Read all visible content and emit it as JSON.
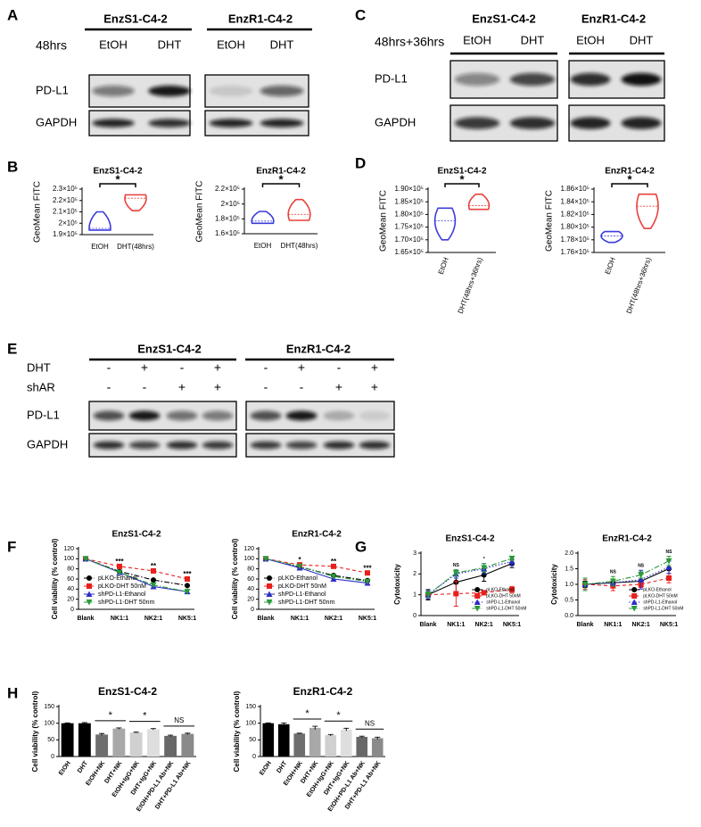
{
  "panel_labels": [
    "A",
    "B",
    "C",
    "D",
    "E",
    "F",
    "G",
    "H"
  ],
  "blots": [
    {
      "time_label": "48hrs",
      "groups": [
        {
          "title": "EnzS1-C4-2",
          "lanes": [
            "EtOH",
            "DHT"
          ]
        },
        {
          "title": "EnzR1-C4-2",
          "lanes": [
            "EtOH",
            "DHT"
          ]
        }
      ],
      "rows": [
        "PD-L1",
        "GAPDH"
      ]
    },
    {
      "time_label": "48hrs+36hrs",
      "groups": [
        {
          "title": "EnzS1-C4-2",
          "lanes": [
            "EtOH",
            "DHT"
          ]
        },
        {
          "title": "EnzR1-C4-2",
          "lanes": [
            "EtOH",
            "DHT"
          ]
        }
      ],
      "rows": [
        "PD-L1",
        "GAPDH"
      ]
    },
    {
      "groups": [
        {
          "title": "EnzS1-C4-2"
        },
        {
          "title": "EnzR1-C4-2"
        }
      ],
      "treatments": [
        {
          "label": "DHT",
          "marks": [
            "-",
            "+",
            "-",
            "+",
            "-",
            "+",
            "-",
            "+"
          ]
        },
        {
          "label": "shAR",
          "marks": [
            "-",
            "-",
            "+",
            "+",
            "-",
            "-",
            "+",
            "+"
          ]
        }
      ],
      "rows": [
        "PD-L1",
        "GAPDH"
      ]
    }
  ],
  "chart_data": [
    {
      "type": "violin",
      "title": "EnzS1-C4-2",
      "ylabel": "GeoMean FITC",
      "categories": [
        "EtOH",
        "DHT(48hrs)"
      ],
      "colors": [
        "#3c3cdc",
        "#e8403c"
      ],
      "min": [
        194000,
        211000
      ],
      "median": [
        195500,
        222000
      ],
      "max": [
        210000,
        225000
      ],
      "ylim": [
        190000,
        230000
      ],
      "yticks": [
        {
          "value": 230000,
          "label": "2.3×10⁵"
        },
        {
          "value": 220000,
          "label": "2.2×10⁵"
        },
        {
          "value": 210000,
          "label": "2.1×10⁵"
        },
        {
          "value": 200000,
          "label": "2×10⁵"
        },
        {
          "value": 190000,
          "label": "1.9×10⁵"
        }
      ],
      "significance": "*"
    },
    {
      "type": "violin",
      "title": "EnzR1-C4-2",
      "ylabel": "GeoMean FITC",
      "categories": [
        "EtOH",
        "DHT(48hrs)"
      ],
      "colors": [
        "#3c3cdc",
        "#e8403c"
      ],
      "min": [
        174000,
        178000
      ],
      "median": [
        177000,
        186000
      ],
      "max": [
        190000,
        206000
      ],
      "ylim": [
        160000,
        220000
      ],
      "yticks": [
        {
          "value": 220000,
          "label": "2.2×10⁵"
        },
        {
          "value": 200000,
          "label": "2×10⁵"
        },
        {
          "value": 180000,
          "label": "1.8×10⁵"
        },
        {
          "value": 160000,
          "label": "1.6×10⁵"
        }
      ],
      "significance": "*"
    },
    {
      "type": "violin",
      "title": "EnzS1-C4-2",
      "ylabel": "GeoMean FITC",
      "categories": [
        "EtOH",
        "DHT(48hrs+36hrs)"
      ],
      "colors": [
        "#3c3cdc",
        "#e8403c"
      ],
      "min": [
        170000,
        182000
      ],
      "median": [
        177500,
        183500
      ],
      "max": [
        182500,
        188000
      ],
      "ylim": [
        165000,
        190000
      ],
      "yticks": [
        {
          "value": 190000,
          "label": "1.90×10⁵"
        },
        {
          "value": 185000,
          "label": "1.85×10⁵"
        },
        {
          "value": 180000,
          "label": "1.80×10⁵"
        },
        {
          "value": 175000,
          "label": "1.75×10⁵"
        },
        {
          "value": 170000,
          "label": "1.70×10⁵"
        },
        {
          "value": 165000,
          "label": "1.65×10⁵"
        }
      ],
      "significance": "*"
    },
    {
      "type": "violin",
      "title": "EnzR1-C4-2",
      "ylabel": "GeoMean FITC",
      "categories": [
        "EtOH",
        "DHT(48hrs+36hrs)"
      ],
      "colors": [
        "#3c3cdc",
        "#e8403c"
      ],
      "min": [
        177600,
        179800
      ],
      "median": [
        178600,
        183300
      ],
      "max": [
        179300,
        185200
      ],
      "ylim": [
        176000,
        186000
      ],
      "yticks": [
        {
          "value": 186000,
          "label": "1.86×10⁵"
        },
        {
          "value": 184000,
          "label": "1.84×10⁵"
        },
        {
          "value": 182000,
          "label": "1.82×10⁵"
        },
        {
          "value": 180000,
          "label": "1.80×10⁵"
        },
        {
          "value": 178000,
          "label": "1.78×10⁵"
        },
        {
          "value": 176000,
          "label": "1.76×10⁵"
        }
      ],
      "significance": "*"
    },
    {
      "type": "line",
      "title": "EnzS1-C4-2",
      "ylabel": "Cell viability (% control)",
      "categories": [
        "Blank",
        "NK1:1",
        "NK2:1",
        "NK5:1"
      ],
      "ylim": [
        0,
        120
      ],
      "yticks": [
        0,
        20,
        40,
        60,
        80,
        100,
        120
      ],
      "legend": "lower left",
      "annotations": [
        null,
        "***",
        "**",
        "***"
      ],
      "series": [
        {
          "name": "pLKO-Ethanol",
          "color": "#000000",
          "marker": "circle",
          "linestyle": "dashdot",
          "values": [
            100,
            75,
            58,
            47
          ]
        },
        {
          "name": "pLKO-DHT 50nM",
          "color": "#e8201c",
          "marker": "square",
          "linestyle": "dashed",
          "values": [
            100,
            85,
            76,
            60
          ]
        },
        {
          "name": "shPD-L1-Ethanol",
          "color": "#2c2cc8",
          "marker": "triangle-up",
          "linestyle": "solid",
          "values": [
            100,
            73,
            45,
            35
          ]
        },
        {
          "name": "shPD-L1-DHT 50nm",
          "color": "#2a9a3a",
          "marker": "triangle-down",
          "linestyle": "dashdot",
          "values": [
            100,
            73,
            48,
            35
          ]
        }
      ]
    },
    {
      "type": "line",
      "title": "EnzR1-C4-2",
      "ylabel": "Cell viability (% control)",
      "categories": [
        "Blank",
        "NK1:1",
        "NK2:1",
        "NK5:1"
      ],
      "ylim": [
        0,
        120
      ],
      "yticks": [
        0,
        20,
        40,
        60,
        80,
        100,
        120
      ],
      "legend": "lower left",
      "annotations": [
        null,
        "*",
        "**",
        "***"
      ],
      "series": [
        {
          "name": "pLKO-Ethanol",
          "color": "#000000",
          "marker": "circle",
          "linestyle": "dashdot",
          "values": [
            100,
            84,
            67,
            57
          ]
        },
        {
          "name": "pLKO-DHT 50nM",
          "color": "#e8201c",
          "marker": "square",
          "linestyle": "dashed",
          "values": [
            100,
            88,
            85,
            72
          ]
        },
        {
          "name": "shPD-L1-Ethanol",
          "color": "#2c2cc8",
          "marker": "triangle-up",
          "linestyle": "solid",
          "values": [
            100,
            82,
            60,
            52
          ]
        },
        {
          "name": "shPD-L1-DHT 50nm",
          "color": "#2a9a3a",
          "marker": "triangle-down",
          "linestyle": "dashdot",
          "values": [
            100,
            85,
            65,
            55
          ]
        }
      ]
    },
    {
      "type": "line",
      "title": "EnzS1-C4-2",
      "ylabel": "Cytotoxicity",
      "categories": [
        "Blank",
        "NK1:1",
        "NK2:1",
        "NK5:1"
      ],
      "ylim": [
        0,
        3
      ],
      "yticks": [
        0,
        1,
        2,
        3
      ],
      "legend": "lower right",
      "annotations": [
        null,
        "NS",
        "*",
        "*"
      ],
      "series": [
        {
          "name": "pLKO-Ethanol",
          "color": "#000000",
          "marker": "circle",
          "linestyle": "solid",
          "values": [
            1,
            1.6,
            1.95,
            2.5
          ],
          "errors": [
            0.25,
            0.45,
            0.3,
            0.2
          ]
        },
        {
          "name": "pLKO-DHT 50nM",
          "color": "#e8201c",
          "marker": "square",
          "linestyle": "dashed",
          "values": [
            1,
            1.05,
            1.1,
            1.25
          ],
          "errors": [
            0.2,
            0.6,
            0.1,
            0.15
          ]
        },
        {
          "name": "shPD-L1-Ethanol",
          "color": "#2c2cc8",
          "marker": "triangle-up",
          "linestyle": "dotted",
          "values": [
            1,
            2,
            2.25,
            2.6
          ],
          "errors": [
            0.2,
            0.2,
            0.25,
            0.2
          ]
        },
        {
          "name": "shPD-L1-DHT 50nM",
          "color": "#2a9a3a",
          "marker": "triangle-down",
          "linestyle": "dashdot",
          "values": [
            1,
            2.05,
            2.3,
            2.75
          ],
          "errors": [
            0.15,
            0.15,
            0.2,
            0.1
          ]
        }
      ]
    },
    {
      "type": "line",
      "title": "EnzR1-C4-2",
      "ylabel": "Cytotoxicity",
      "categories": [
        "Blank",
        "NK1:1",
        "NK2:1",
        "NK5:1"
      ],
      "ylim": [
        0,
        2
      ],
      "yticks": [
        {
          "value": 0,
          "label": "0.0"
        },
        0.5,
        {
          "value": 1,
          "label": "1.0"
        },
        1.5,
        {
          "value": 2,
          "label": "2.0"
        }
      ],
      "legend": "lower right",
      "annotations": [
        null,
        "NS",
        "NS",
        "NS"
      ],
      "series": [
        {
          "name": "pLKO-Ethanol",
          "color": "#000000",
          "marker": "circle",
          "linestyle": "solid",
          "values": [
            1,
            1.05,
            1.1,
            1.5
          ],
          "errors": [
            0.1,
            0.1,
            0.1,
            0.3
          ]
        },
        {
          "name": "pLKO-DHT 50nM",
          "color": "#e8201c",
          "marker": "square",
          "linestyle": "dashed",
          "values": [
            1,
            0.95,
            1,
            1.2
          ],
          "errors": [
            0.15,
            0.15,
            0.1,
            0.15
          ]
        },
        {
          "name": "shPD-L1-Ethanol",
          "color": "#2c2cc8",
          "marker": "triangle-up",
          "linestyle": "dotted",
          "values": [
            1,
            1.05,
            1.15,
            1.55
          ],
          "errors": [
            0.2,
            0.1,
            0.3,
            0.2
          ]
        },
        {
          "name": "shPD-L1-DHT 50nM",
          "color": "#2a9a3a",
          "marker": "triangle-down",
          "linestyle": "dashdot",
          "values": [
            1,
            1.1,
            1.3,
            1.75
          ],
          "errors": [
            0.2,
            0.15,
            0.1,
            0.15
          ]
        }
      ]
    },
    {
      "type": "bar",
      "title": "EnzS1-C4-2",
      "ylabel": "Cell viability (% control)",
      "categories": [
        "EtOH",
        "DHT",
        "EtOH+NK",
        "DHT+NK",
        "EtOH+IgG+NK",
        "DHT+IgG+NK",
        "EtOH+PD-L1 Ab+NK",
        "DHT+PD-L1 Ab+NK"
      ],
      "values": [
        100,
        100,
        66,
        84,
        72,
        82,
        62,
        68
      ],
      "errors": [
        1,
        2,
        3,
        2,
        1,
        2,
        2,
        2
      ],
      "colors": [
        "#000000",
        "#000000",
        "#6e6e6e",
        "#a8a8a8",
        "#d0d0d0",
        "#dedede",
        "#686868",
        "#8a8a8a"
      ],
      "ylim": [
        0,
        150
      ],
      "yticks": [
        0,
        50,
        100,
        150
      ],
      "significance": [
        "*",
        "*",
        "NS"
      ]
    },
    {
      "type": "bar",
      "title": "EnzR1-C4-2",
      "ylabel": "Cell viability (% control)",
      "categories": [
        "EtOH",
        "DHT",
        "EtOH+NK",
        "DHT+NK",
        "EtOH+IgG+NK",
        "DHT+IgG+NK",
        "EtOH+PD-L1 Ab+NK",
        "DHT+PD-L1 Ab+NK"
      ],
      "values": [
        100,
        97,
        69,
        86,
        64,
        81,
        59,
        55
      ],
      "errors": [
        1,
        4,
        1,
        5,
        2,
        4,
        2,
        3
      ],
      "colors": [
        "#000000",
        "#000000",
        "#6e6e6e",
        "#a8a8a8",
        "#d0d0d0",
        "#dedede",
        "#686868",
        "#8a8a8a"
      ],
      "ylim": [
        0,
        150
      ],
      "yticks": [
        0,
        50,
        100,
        150
      ],
      "significance": [
        "*",
        "*",
        "NS"
      ]
    }
  ]
}
